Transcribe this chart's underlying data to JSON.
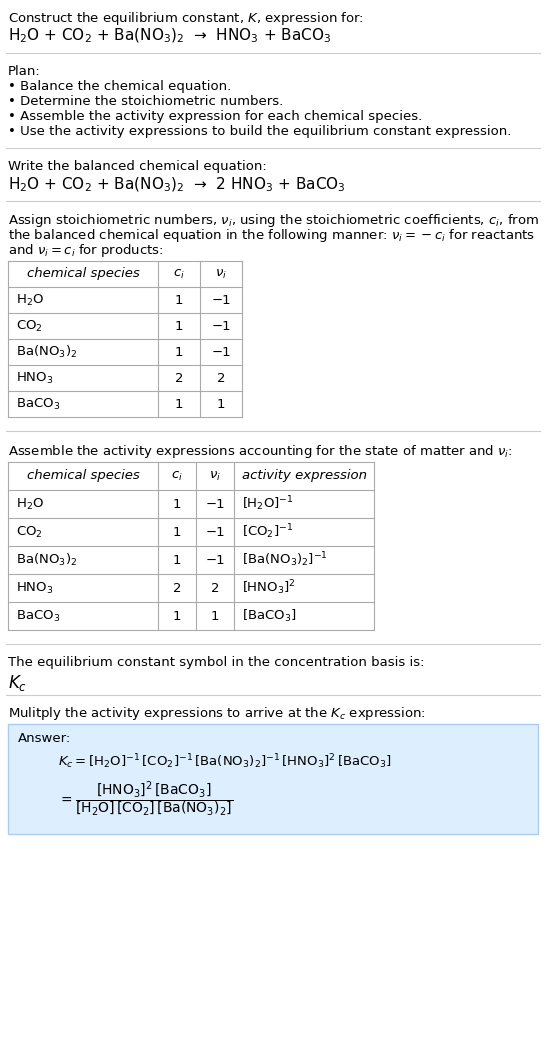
{
  "bg_color": "#ffffff",
  "text_color": "#000000",
  "title_line1": "Construct the equilibrium constant, $K$, expression for:",
  "reaction_unbalanced": "H$_2$O + CO$_2$ + Ba(NO$_3$)$_2$  →  HNO$_3$ + BaCO$_3$",
  "plan_header": "Plan:",
  "plan_items": [
    "• Balance the chemical equation.",
    "• Determine the stoichiometric numbers.",
    "• Assemble the activity expression for each chemical species.",
    "• Use the activity expressions to build the equilibrium constant expression."
  ],
  "balanced_header": "Write the balanced chemical equation:",
  "reaction_balanced": "H$_2$O + CO$_2$ + Ba(NO$_3$)$_2$  →  2 HNO$_3$ + BaCO$_3$",
  "stoich_header_lines": [
    "Assign stoichiometric numbers, $\\nu_i$, using the stoichiometric coefficients, $c_i$, from",
    "the balanced chemical equation in the following manner: $\\nu_i = -c_i$ for reactants",
    "and $\\nu_i = c_i$ for products:"
  ],
  "table1_headers": [
    "chemical species",
    "$c_i$",
    "$\\nu_i$"
  ],
  "table1_rows": [
    [
      "H$_2$O",
      "1",
      "−1"
    ],
    [
      "CO$_2$",
      "1",
      "−1"
    ],
    [
      "Ba(NO$_3$)$_2$",
      "1",
      "−1"
    ],
    [
      "HNO$_3$",
      "2",
      "2"
    ],
    [
      "BaCO$_3$",
      "1",
      "1"
    ]
  ],
  "activity_header": "Assemble the activity expressions accounting for the state of matter and $\\nu_i$:",
  "table2_headers": [
    "chemical species",
    "$c_i$",
    "$\\nu_i$",
    "activity expression"
  ],
  "table2_rows": [
    [
      "H$_2$O",
      "1",
      "−1",
      "[H$_2$O]$^{-1}$"
    ],
    [
      "CO$_2$",
      "1",
      "−1",
      "[CO$_2$]$^{-1}$"
    ],
    [
      "Ba(NO$_3$)$_2$",
      "1",
      "−1",
      "[Ba(NO$_3$)$_2$]$^{-1}$"
    ],
    [
      "HNO$_3$",
      "2",
      "2",
      "[HNO$_3$]$^2$"
    ],
    [
      "BaCO$_3$",
      "1",
      "1",
      "[BaCO$_3$]"
    ]
  ],
  "kc_header": "The equilibrium constant symbol in the concentration basis is:",
  "kc_symbol": "$K_c$",
  "multiply_header": "Mulitply the activity expressions to arrive at the $K_c$ expression:",
  "answer_label": "Answer:",
  "answer_box_bg": "#ddeeff",
  "answer_box_border": "#aaccee"
}
